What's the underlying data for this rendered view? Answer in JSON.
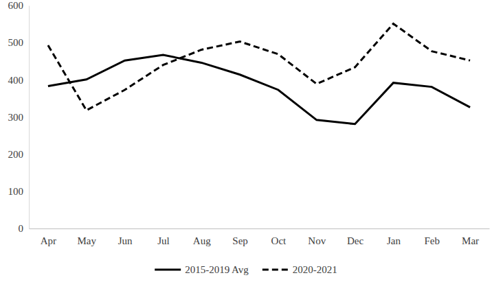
{
  "chart_data": {
    "type": "line",
    "categories": [
      "Apr",
      "May",
      "Jun",
      "Jul",
      "Aug",
      "Sep",
      "Oct",
      "Nov",
      "Dec",
      "Jan",
      "Feb",
      "Mar"
    ],
    "series": [
      {
        "name": "2015-2019 Avg",
        "color": "#000000",
        "line_style": "solid",
        "values": [
          383,
          401,
          452,
          467,
          446,
          414,
          373,
          292,
          281,
          392,
          381,
          326
        ]
      },
      {
        "name": "2020-2021",
        "color": "#000000",
        "line_style": "dashed",
        "values": [
          493,
          318,
          373,
          440,
          481,
          503,
          469,
          389,
          434,
          551,
          477,
          452
        ]
      }
    ],
    "ylim": [
      0,
      600
    ],
    "yticks": [
      0,
      100,
      200,
      300,
      400,
      500,
      600
    ],
    "grid": false,
    "legend": "bottom"
  }
}
